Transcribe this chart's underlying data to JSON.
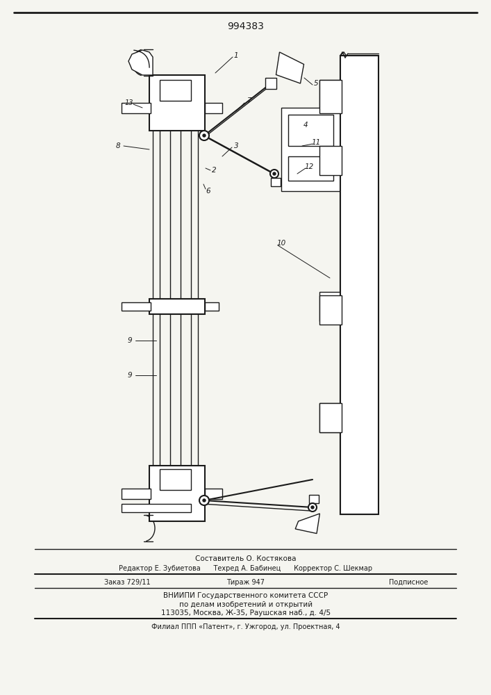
{
  "patent_number": "994383",
  "background_color": "#f5f5f0",
  "line_color": "#1a1a1a",
  "fig_width": 7.07,
  "fig_height": 10.0,
  "footer_lines": [
    "Составитель О. Костякова",
    "Редактор Е. Зубиетова      Техред А. Бабинец      Корректор С. Шекмар",
    "Заказ 729/11          Тираж 947          Подписное",
    "ВНИИПИ Государственного комитета СССР",
    "по делам изобретений и открытий",
    "113035, Москва, Ж-35, Раушская наб., д. 4/5",
    "Филиал ППП «Патент», г. Ужгород, ул. Проектная, 4"
  ]
}
